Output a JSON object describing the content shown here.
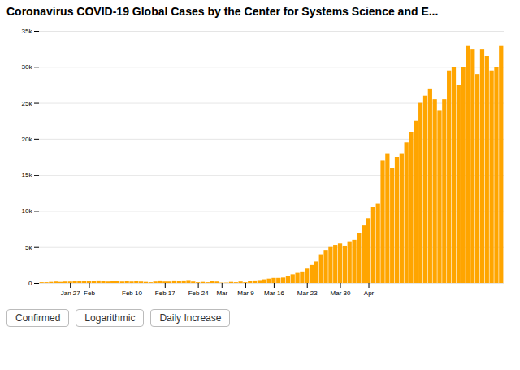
{
  "chart_data": {
    "type": "bar",
    "title": "Coronavirus COVID-19 Global Cases by the Center for Systems Science and E...",
    "color": "#FFA500",
    "categories": [
      null,
      null,
      null,
      null,
      null,
      null,
      "Jan 27",
      null,
      null,
      null,
      "Feb",
      null,
      null,
      null,
      null,
      null,
      null,
      null,
      null,
      "Feb 10",
      null,
      null,
      null,
      null,
      null,
      null,
      "Feb 17",
      null,
      null,
      null,
      null,
      null,
      null,
      "Feb 24",
      null,
      null,
      null,
      null,
      "Mar",
      null,
      null,
      null,
      null,
      "Mar 9",
      null,
      null,
      null,
      null,
      null,
      "Mar 16",
      null,
      null,
      null,
      null,
      null,
      null,
      "Mar 23",
      null,
      null,
      null,
      null,
      null,
      null,
      "Mar 30",
      null,
      null,
      null,
      null,
      null,
      "Apr",
      null,
      null,
      null,
      null,
      null,
      null,
      null,
      null,
      null,
      null,
      null,
      null,
      null,
      null,
      null,
      null,
      null,
      null,
      null,
      null,
      null,
      null,
      null,
      null,
      null,
      null,
      null,
      null
    ],
    "values": [
      100,
      100,
      150,
      200,
      150,
      200,
      200,
      250,
      300,
      250,
      300,
      300,
      350,
      250,
      200,
      300,
      250,
      200,
      300,
      200,
      250,
      200,
      150,
      100,
      200,
      350,
      200,
      200,
      350,
      300,
      350,
      400,
      200,
      100,
      150,
      100,
      250,
      200,
      50,
      50,
      150,
      100,
      200,
      100,
      300,
      350,
      400,
      500,
      600,
      700,
      700,
      750,
      1000,
      1200,
      1400,
      1600,
      2000,
      2500,
      3000,
      4000,
      4500,
      5000,
      5300,
      5500,
      5200,
      5800,
      6000,
      7000,
      8000,
      9000,
      10500,
      11000,
      17000,
      18000,
      16000,
      17500,
      18000,
      19500,
      21000,
      22500,
      25000,
      26000,
      27000,
      25500,
      24000,
      25500,
      29500,
      30000,
      27500,
      30000,
      33000,
      32500,
      29000,
      32500,
      31500,
      29500,
      30000,
      33000
    ],
    "ylim": [
      0,
      35000
    ],
    "yticks": [
      0,
      {
        "value": 5000,
        "label": "5k"
      },
      {
        "value": 10000,
        "label": "10k"
      },
      {
        "value": 15000,
        "label": "15k"
      },
      {
        "value": 20000,
        "label": "20k"
      },
      {
        "value": 25000,
        "label": "25k"
      },
      {
        "value": 30000,
        "label": "30k"
      },
      {
        "value": 35000,
        "label": "35k"
      }
    ],
    "grid": true,
    "annotations": [
      "Confirmed",
      "Logarithmic",
      "Daily Increase"
    ]
  }
}
